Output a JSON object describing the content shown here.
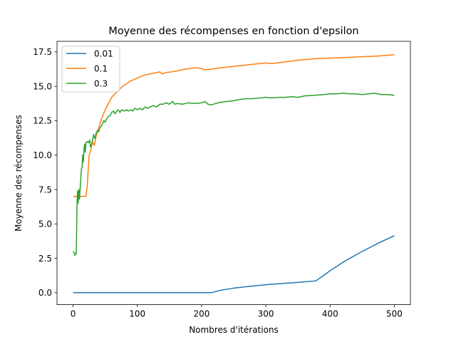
{
  "chart_data": {
    "type": "line",
    "title": "Moyenne des récompenses en fonction d'epsilon",
    "xlabel": "Nombres d'itérations",
    "ylabel": "Moyenne des récompenses",
    "xlim": [
      -25,
      525
    ],
    "ylim": [
      -0.87,
      18.27
    ],
    "xticks": [
      0,
      100,
      200,
      300,
      400,
      500
    ],
    "yticks": [
      0.0,
      2.5,
      5.0,
      7.5,
      10.0,
      12.5,
      15.0,
      17.5
    ],
    "ytick_labels": [
      "0.0",
      "2.5",
      "5.0",
      "7.5",
      "10.0",
      "12.5",
      "15.0",
      "17.5"
    ],
    "grid": false,
    "legend_position": "upper left",
    "series": [
      {
        "name": "0.01",
        "color": "#1f77b4",
        "points": [
          [
            0,
            0
          ],
          [
            50,
            0
          ],
          [
            100,
            0
          ],
          [
            150,
            0
          ],
          [
            200,
            0
          ],
          [
            215,
            0
          ],
          [
            230,
            0.18
          ],
          [
            250,
            0.33
          ],
          [
            275,
            0.46
          ],
          [
            300,
            0.58
          ],
          [
            325,
            0.67
          ],
          [
            350,
            0.75
          ],
          [
            378,
            0.86
          ],
          [
            390,
            1.25
          ],
          [
            400,
            1.6
          ],
          [
            425,
            2.35
          ],
          [
            450,
            3.0
          ],
          [
            475,
            3.6
          ],
          [
            500,
            4.15
          ]
        ]
      },
      {
        "name": "0.1",
        "color": "#ff7f0e",
        "points": [
          [
            0,
            7.0
          ],
          [
            10,
            7.0
          ],
          [
            20,
            7.0
          ],
          [
            22,
            7.7
          ],
          [
            25,
            10.0
          ],
          [
            28,
            10.4
          ],
          [
            30,
            11.0
          ],
          [
            33,
            10.7
          ],
          [
            36,
            11.4
          ],
          [
            40,
            12.0
          ],
          [
            44,
            12.6
          ],
          [
            50,
            13.3
          ],
          [
            60,
            14.2
          ],
          [
            70,
            14.7
          ],
          [
            80,
            15.1
          ],
          [
            90,
            15.4
          ],
          [
            100,
            15.6
          ],
          [
            110,
            15.8
          ],
          [
            120,
            15.9
          ],
          [
            130,
            16.0
          ],
          [
            135,
            16.05
          ],
          [
            138,
            15.9
          ],
          [
            145,
            16.0
          ],
          [
            160,
            16.1
          ],
          [
            175,
            16.25
          ],
          [
            190,
            16.35
          ],
          [
            200,
            16.3
          ],
          [
            205,
            16.2
          ],
          [
            215,
            16.25
          ],
          [
            230,
            16.35
          ],
          [
            250,
            16.45
          ],
          [
            270,
            16.55
          ],
          [
            290,
            16.65
          ],
          [
            300,
            16.7
          ],
          [
            310,
            16.65
          ],
          [
            325,
            16.75
          ],
          [
            350,
            16.9
          ],
          [
            375,
            17.0
          ],
          [
            400,
            17.05
          ],
          [
            425,
            17.1
          ],
          [
            450,
            17.15
          ],
          [
            475,
            17.2
          ],
          [
            500,
            17.3
          ]
        ]
      },
      {
        "name": "0.3",
        "color": "#2ca02c",
        "points": [
          [
            0,
            3.0
          ],
          [
            2,
            2.9
          ],
          [
            3,
            2.7
          ],
          [
            4,
            2.8
          ],
          [
            5,
            2.85
          ],
          [
            6,
            6.2
          ],
          [
            7,
            7.4
          ],
          [
            8,
            6.5
          ],
          [
            9,
            7.5
          ],
          [
            10,
            6.8
          ],
          [
            12,
            8.3
          ],
          [
            13,
            9.0
          ],
          [
            14,
            9.1
          ],
          [
            15,
            10.0
          ],
          [
            16,
            9.5
          ],
          [
            17,
            10.4
          ],
          [
            18,
            10.8
          ],
          [
            19,
            10.2
          ],
          [
            20,
            10.9
          ],
          [
            22,
            11.0
          ],
          [
            24,
            10.9
          ],
          [
            26,
            11.1
          ],
          [
            27,
            10.6
          ],
          [
            28,
            10.6
          ],
          [
            30,
            11.0
          ],
          [
            32,
            11.5
          ],
          [
            34,
            11.2
          ],
          [
            36,
            11.6
          ],
          [
            38,
            11.8
          ],
          [
            40,
            11.7
          ],
          [
            42,
            12.0
          ],
          [
            44,
            12.1
          ],
          [
            46,
            12.3
          ],
          [
            48,
            12.5
          ],
          [
            50,
            12.4
          ],
          [
            52,
            12.6
          ],
          [
            55,
            12.8
          ],
          [
            58,
            12.9
          ],
          [
            60,
            13.1
          ],
          [
            63,
            13.2
          ],
          [
            65,
            13.0
          ],
          [
            68,
            13.2
          ],
          [
            70,
            13.3
          ],
          [
            73,
            13.1
          ],
          [
            76,
            13.3
          ],
          [
            80,
            13.2
          ],
          [
            83,
            13.3
          ],
          [
            86,
            13.2
          ],
          [
            90,
            13.3
          ],
          [
            93,
            13.2
          ],
          [
            96,
            13.4
          ],
          [
            100,
            13.3
          ],
          [
            104,
            13.4
          ],
          [
            108,
            13.3
          ],
          [
            112,
            13.5
          ],
          [
            116,
            13.4
          ],
          [
            120,
            13.5
          ],
          [
            125,
            13.6
          ],
          [
            130,
            13.5
          ],
          [
            135,
            13.7
          ],
          [
            140,
            13.7
          ],
          [
            145,
            13.8
          ],
          [
            150,
            13.7
          ],
          [
            155,
            13.9
          ],
          [
            158,
            13.7
          ],
          [
            162,
            13.75
          ],
          [
            170,
            13.7
          ],
          [
            180,
            13.8
          ],
          [
            190,
            13.75
          ],
          [
            200,
            13.8
          ],
          [
            205,
            13.9
          ],
          [
            210,
            13.7
          ],
          [
            215,
            13.65
          ],
          [
            222,
            13.75
          ],
          [
            230,
            13.85
          ],
          [
            240,
            13.9
          ],
          [
            250,
            13.95
          ],
          [
            260,
            14.05
          ],
          [
            270,
            14.1
          ],
          [
            280,
            14.1
          ],
          [
            290,
            14.15
          ],
          [
            300,
            14.2
          ],
          [
            310,
            14.15
          ],
          [
            320,
            14.2
          ],
          [
            330,
            14.2
          ],
          [
            340,
            14.25
          ],
          [
            350,
            14.2
          ],
          [
            360,
            14.3
          ],
          [
            375,
            14.35
          ],
          [
            390,
            14.4
          ],
          [
            400,
            14.45
          ],
          [
            410,
            14.45
          ],
          [
            420,
            14.5
          ],
          [
            430,
            14.45
          ],
          [
            440,
            14.45
          ],
          [
            450,
            14.4
          ],
          [
            460,
            14.45
          ],
          [
            470,
            14.5
          ],
          [
            480,
            14.4
          ],
          [
            490,
            14.4
          ],
          [
            500,
            14.35
          ]
        ]
      }
    ]
  }
}
